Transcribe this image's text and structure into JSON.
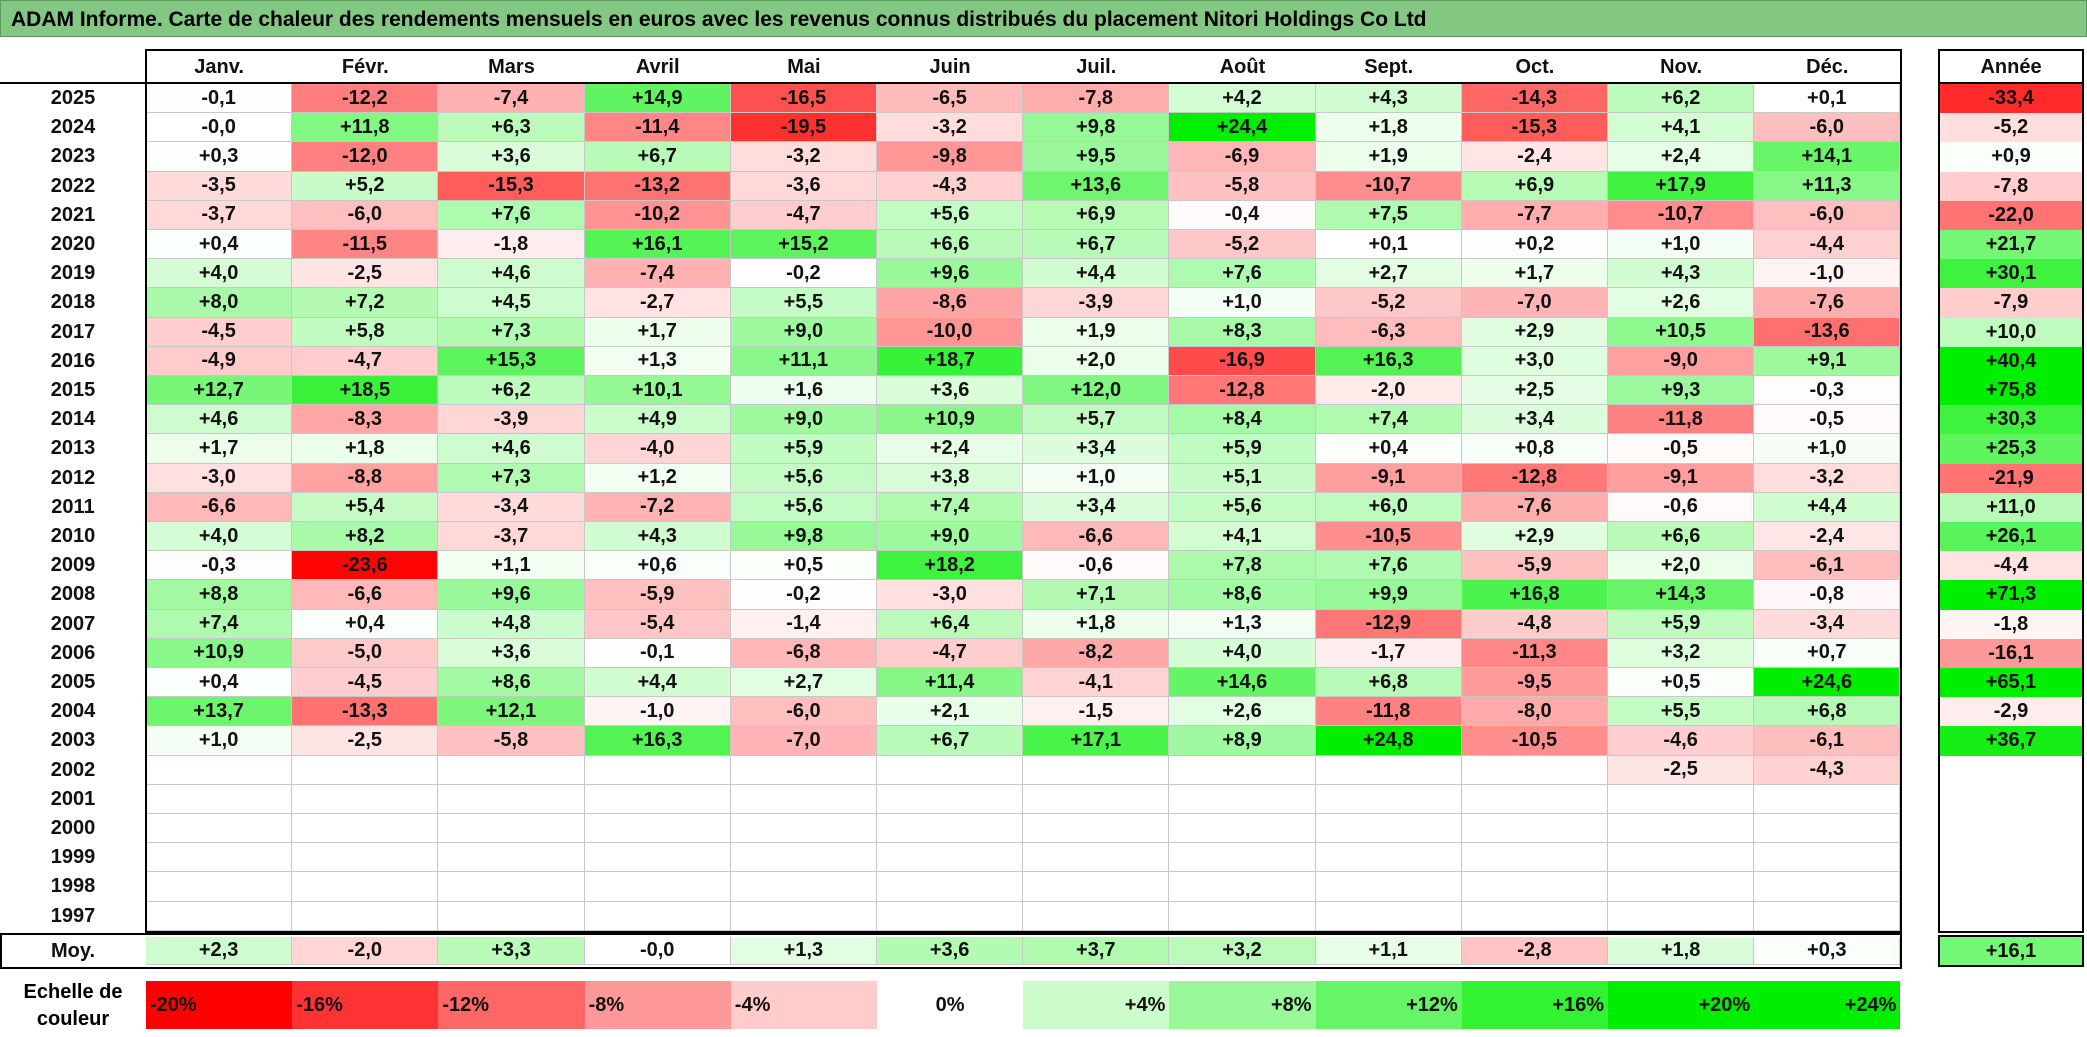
{
  "chart_data": {
    "type": "heatmap",
    "title": "ADAM Informe. Carte de chaleur des rendements mensuels en euros avec les revenus connus distribués du placement Nitori Holdings Co Ltd",
    "columns": [
      "Janv.",
      "Févr.",
      "Mars",
      "Avril",
      "Mai",
      "Juin",
      "Juil.",
      "Août",
      "Sept.",
      "Oct.",
      "Nov.",
      "Déc."
    ],
    "year_column_label": "Année",
    "years": [
      "2025",
      "2024",
      "2023",
      "2022",
      "2021",
      "2020",
      "2019",
      "2018",
      "2017",
      "2016",
      "2015",
      "2014",
      "2013",
      "2012",
      "2011",
      "2010",
      "2009",
      "2008",
      "2007",
      "2006",
      "2005",
      "2004",
      "2003",
      "2002",
      "2001",
      "2000",
      "1999",
      "1998",
      "1997"
    ],
    "values": [
      [
        "-0,1",
        "-12,2",
        "-7,4",
        "+14,9",
        "-16,5",
        "-6,5",
        "-7,8",
        "+4,2",
        "+4,3",
        "-14,3",
        "+6,2",
        "+0,1"
      ],
      [
        "-0,0",
        "+11,8",
        "+6,3",
        "-11,4",
        "-19,5",
        "-3,2",
        "+9,8",
        "+24,4",
        "+1,8",
        "-15,3",
        "+4,1",
        "-6,0"
      ],
      [
        "+0,3",
        "-12,0",
        "+3,6",
        "+6,7",
        "-3,2",
        "-9,8",
        "+9,5",
        "-6,9",
        "+1,9",
        "-2,4",
        "+2,4",
        "+14,1"
      ],
      [
        "-3,5",
        "+5,2",
        "-15,3",
        "-13,2",
        "-3,6",
        "-4,3",
        "+13,6",
        "-5,8",
        "-10,7",
        "+6,9",
        "+17,9",
        "+11,3"
      ],
      [
        "-3,7",
        "-6,0",
        "+7,6",
        "-10,2",
        "-4,7",
        "+5,6",
        "+6,9",
        "-0,4",
        "+7,5",
        "-7,7",
        "-10,7",
        "-6,0"
      ],
      [
        "+0,4",
        "-11,5",
        "-1,8",
        "+16,1",
        "+15,2",
        "+6,6",
        "+6,7",
        "-5,2",
        "+0,1",
        "+0,2",
        "+1,0",
        "-4,4"
      ],
      [
        "+4,0",
        "-2,5",
        "+4,6",
        "-7,4",
        "-0,2",
        "+9,6",
        "+4,4",
        "+7,6",
        "+2,7",
        "+1,7",
        "+4,3",
        "-1,0"
      ],
      [
        "+8,0",
        "+7,2",
        "+4,5",
        "-2,7",
        "+5,5",
        "-8,6",
        "-3,9",
        "+1,0",
        "-5,2",
        "-7,0",
        "+2,6",
        "-7,6"
      ],
      [
        "-4,5",
        "+5,8",
        "+7,3",
        "+1,7",
        "+9,0",
        "-10,0",
        "+1,9",
        "+8,3",
        "-6,3",
        "+2,9",
        "+10,5",
        "-13,6"
      ],
      [
        "-4,9",
        "-4,7",
        "+15,3",
        "+1,3",
        "+11,1",
        "+18,7",
        "+2,0",
        "-16,9",
        "+16,3",
        "+3,0",
        "-9,0",
        "+9,1"
      ],
      [
        "+12,7",
        "+18,5",
        "+6,2",
        "+10,1",
        "+1,6",
        "+3,6",
        "+12,0",
        "-12,8",
        "-2,0",
        "+2,5",
        "+9,3",
        "-0,3"
      ],
      [
        "+4,6",
        "-8,3",
        "-3,9",
        "+4,9",
        "+9,0",
        "+10,9",
        "+5,7",
        "+8,4",
        "+7,4",
        "+3,4",
        "-11,8",
        "-0,5"
      ],
      [
        "+1,7",
        "+1,8",
        "+4,6",
        "-4,0",
        "+5,9",
        "+2,4",
        "+3,4",
        "+5,9",
        "+0,4",
        "+0,8",
        "-0,5",
        "+1,0"
      ],
      [
        "-3,0",
        "-8,8",
        "+7,3",
        "+1,2",
        "+5,6",
        "+3,8",
        "+1,0",
        "+5,1",
        "-9,1",
        "-12,8",
        "-9,1",
        "-3,2"
      ],
      [
        "-6,6",
        "+5,4",
        "-3,4",
        "-7,2",
        "+5,6",
        "+7,4",
        "+3,4",
        "+5,6",
        "+6,0",
        "-7,6",
        "-0,6",
        "+4,4"
      ],
      [
        "+4,0",
        "+8,2",
        "-3,7",
        "+4,3",
        "+9,8",
        "+9,0",
        "-6,6",
        "+4,1",
        "-10,5",
        "+2,9",
        "+6,6",
        "-2,4"
      ],
      [
        "-0,3",
        "-23,6",
        "+1,1",
        "+0,6",
        "+0,5",
        "+18,2",
        "-0,6",
        "+7,8",
        "+7,6",
        "-5,9",
        "+2,0",
        "-6,1"
      ],
      [
        "+8,8",
        "-6,6",
        "+9,6",
        "-5,9",
        "-0,2",
        "-3,0",
        "+7,1",
        "+8,6",
        "+9,9",
        "+16,8",
        "+14,3",
        "-0,8"
      ],
      [
        "+7,4",
        "+0,4",
        "+4,8",
        "-5,4",
        "-1,4",
        "+6,4",
        "+1,8",
        "+1,3",
        "-12,9",
        "-4,8",
        "+5,9",
        "-3,4"
      ],
      [
        "+10,9",
        "-5,0",
        "+3,6",
        "-0,1",
        "-6,8",
        "-4,7",
        "-8,2",
        "+4,0",
        "-1,7",
        "-11,3",
        "+3,2",
        "+0,7"
      ],
      [
        "+0,4",
        "-4,5",
        "+8,6",
        "+4,4",
        "+2,7",
        "+11,4",
        "-4,1",
        "+14,6",
        "+6,8",
        "-9,5",
        "+0,5",
        "+24,6"
      ],
      [
        "+13,7",
        "-13,3",
        "+12,1",
        "-1,0",
        "-6,0",
        "+2,1",
        "-1,5",
        "+2,6",
        "-11,8",
        "-8,0",
        "+5,5",
        "+6,8"
      ],
      [
        "+1,0",
        "-2,5",
        "-5,8",
        "+16,3",
        "-7,0",
        "+6,7",
        "+17,1",
        "+8,9",
        "+24,8",
        "-10,5",
        "-4,6",
        "-6,1"
      ],
      [
        "",
        "",
        "",
        "",
        "",
        "",
        "",
        "",
        "",
        "",
        "-2,5",
        "-4,3"
      ],
      [
        "",
        "",
        "",
        "",
        "",
        "",
        "",
        "",
        "",
        "",
        "",
        ""
      ],
      [
        "",
        "",
        "",
        "",
        "",
        "",
        "",
        "",
        "",
        "",
        "",
        ""
      ],
      [
        "",
        "",
        "",
        "",
        "",
        "",
        "",
        "",
        "",
        "",
        "",
        ""
      ],
      [
        "",
        "",
        "",
        "",
        "",
        "",
        "",
        "",
        "",
        "",
        "",
        ""
      ],
      [
        "",
        "",
        "",
        "",
        "",
        "",
        "",
        "",
        "",
        "",
        "",
        ""
      ]
    ],
    "annual": [
      "-33,4",
      "-5,2",
      "+0,9",
      "-7,8",
      "-22,0",
      "+21,7",
      "+30,1",
      "-7,9",
      "+10,0",
      "+40,4",
      "+75,8",
      "+30,3",
      "+25,3",
      "-21,9",
      "+11,0",
      "+26,1",
      "-4,4",
      "+71,3",
      "-1,8",
      "-16,1",
      "+65,1",
      "-2,9",
      "+36,7",
      "",
      "",
      "",
      "",
      "",
      ""
    ],
    "average_label": "Moy.",
    "averages": [
      "+2,3",
      "-2,0",
      "+3,3",
      "-0,0",
      "+1,3",
      "+3,6",
      "+3,7",
      "+3,2",
      "+1,1",
      "-2,8",
      "+1,8",
      "+0,3"
    ],
    "average_annual": "+16,1",
    "scale_label": "Echelle de couleur",
    "scale": [
      "-20%",
      "-16%",
      "-12%",
      "-8%",
      "-4%",
      "0%",
      "+4%",
      "+8%",
      "+12%",
      "+16%",
      "+20%",
      "+24%"
    ],
    "colors": {
      "negative_max": "#ff0000",
      "zero": "#ffffff",
      "positive_max": "#00ee00"
    }
  }
}
